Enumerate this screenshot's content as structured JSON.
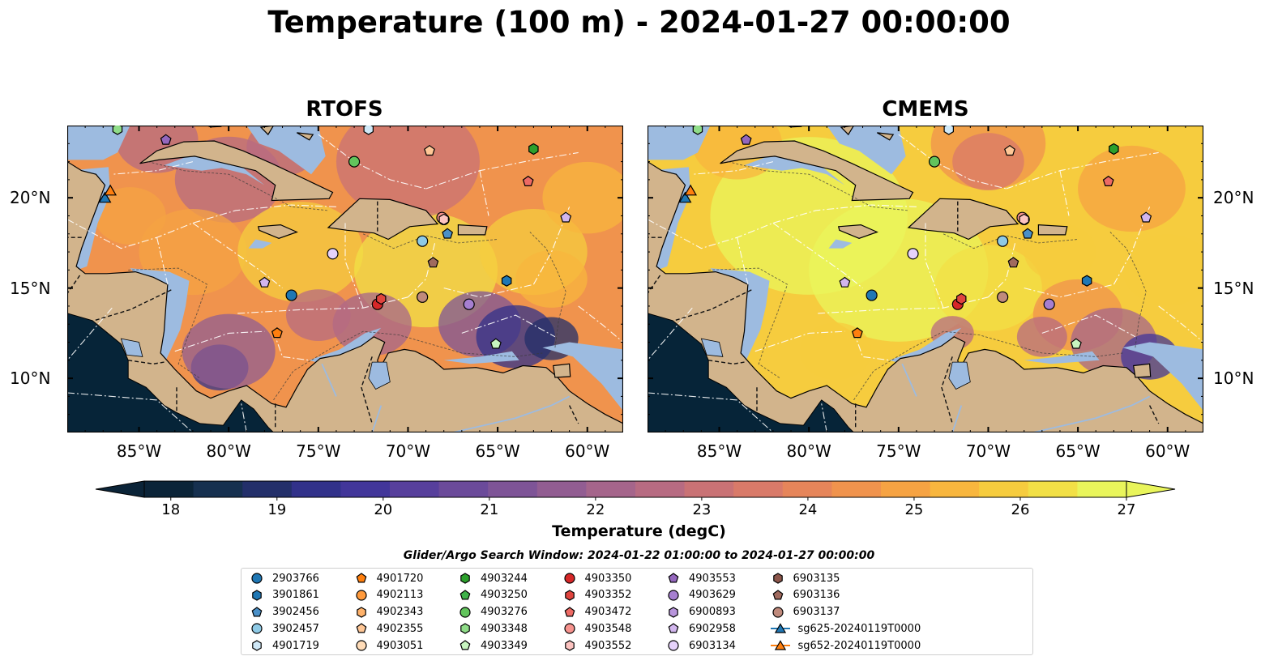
{
  "title": "Temperature (100 m) - 2024-01-27 00:00:00",
  "panels": [
    {
      "title": "RTOFS",
      "variant": "rtofs"
    },
    {
      "title": "CMEMS",
      "variant": "cmems"
    }
  ],
  "map": {
    "lon_range": [
      -89,
      -58
    ],
    "lat_range": [
      7,
      24
    ],
    "lon_ticks": [
      {
        "value": -85,
        "label": "85°W"
      },
      {
        "value": -80,
        "label": "80°W"
      },
      {
        "value": -75,
        "label": "75°W"
      },
      {
        "value": -70,
        "label": "70°W"
      },
      {
        "value": -65,
        "label": "65°W"
      },
      {
        "value": -60,
        "label": "60°W"
      }
    ],
    "lat_ticks": [
      {
        "value": 20,
        "label": "20°N"
      },
      {
        "value": 15,
        "label": "15°N"
      },
      {
        "value": 10,
        "label": "10°N"
      }
    ],
    "colors": {
      "land": "#d2b48c",
      "shelf": "#9dbbe0",
      "deep": "#062438"
    }
  },
  "colorbar": {
    "label": "Temperature (degC)",
    "min": 17.75,
    "max": 27.0,
    "ticks": [
      18,
      19,
      20,
      21,
      22,
      23,
      24,
      25,
      26,
      27
    ],
    "colors": [
      "#0b2438",
      "#16304f",
      "#232f6a",
      "#31318a",
      "#42369a",
      "#573f9c",
      "#6b4a9a",
      "#7e5497",
      "#925d92",
      "#a5658b",
      "#b76b82",
      "#c97275",
      "#d97a69",
      "#e6855a",
      "#f0934d",
      "#f6a343",
      "#f8b63e",
      "#f6cc3e",
      "#f2e046",
      "#e9f55b"
    ]
  },
  "search_window": "Glider/Argo Search Window: 2024-01-22 01:00:00 to 2024-01-27 00:00:00",
  "legend": [
    {
      "label": "2903766",
      "marker": "circle",
      "color": "#1f77b4"
    },
    {
      "label": "3901861",
      "marker": "hexagon",
      "color": "#1f77b4"
    },
    {
      "label": "3902456",
      "marker": "pentagon",
      "color": "#4a90c8"
    },
    {
      "label": "3902457",
      "marker": "circle",
      "color": "#8ecae6"
    },
    {
      "label": "4901719",
      "marker": "hexagon",
      "color": "#cfe8f7"
    },
    {
      "label": "4901720",
      "marker": "pentagon",
      "color": "#ff7f0e"
    },
    {
      "label": "4902113",
      "marker": "circle",
      "color": "#ff9a3c"
    },
    {
      "label": "4902343",
      "marker": "hexagon",
      "color": "#ffb26b"
    },
    {
      "label": "4902355",
      "marker": "pentagon",
      "color": "#ffc796"
    },
    {
      "label": "4903051",
      "marker": "circle",
      "color": "#ffdcb8"
    },
    {
      "label": "4903244",
      "marker": "hexagon",
      "color": "#2ca02c"
    },
    {
      "label": "4903250",
      "marker": "pentagon",
      "color": "#3fb24a"
    },
    {
      "label": "4903276",
      "marker": "circle",
      "color": "#62c45c"
    },
    {
      "label": "4903348",
      "marker": "hexagon",
      "color": "#8fdc88"
    },
    {
      "label": "4903349",
      "marker": "pentagon",
      "color": "#c8f5c0"
    },
    {
      "label": "4903350",
      "marker": "circle",
      "color": "#d62728"
    },
    {
      "label": "4903352",
      "marker": "hexagon",
      "color": "#e0443e"
    },
    {
      "label": "4903472",
      "marker": "pentagon",
      "color": "#ee6a64"
    },
    {
      "label": "4903548",
      "marker": "circle",
      "color": "#f7938e"
    },
    {
      "label": "4903552",
      "marker": "hexagon",
      "color": "#fcc3c0"
    },
    {
      "label": "4903553",
      "marker": "pentagon",
      "color": "#9467bd"
    },
    {
      "label": "4903629",
      "marker": "circle",
      "color": "#a67fd0"
    },
    {
      "label": "6900893",
      "marker": "hexagon",
      "color": "#b895dc"
    },
    {
      "label": "6902958",
      "marker": "pentagon",
      "color": "#d2b6ee"
    },
    {
      "label": "6903134",
      "marker": "circle",
      "color": "#e6d2fb"
    },
    {
      "label": "6903135",
      "marker": "hexagon",
      "color": "#8c564b"
    },
    {
      "label": "6903136",
      "marker": "pentagon",
      "color": "#a06a5e"
    },
    {
      "label": "6903137",
      "marker": "circle",
      "color": "#c08a7c"
    },
    {
      "label": "sg625-20240119T0000",
      "marker": "triangle-line",
      "color": "#1f77b4"
    },
    {
      "label": "sg652-20240119T0000",
      "marker": "triangle-line",
      "color": "#ff7f0e"
    }
  ],
  "floats": [
    {
      "id": "2903766",
      "lon": -76.5,
      "lat": 14.6
    },
    {
      "id": "3901861",
      "lon": -64.5,
      "lat": 15.4
    },
    {
      "id": "3902456",
      "lon": -67.8,
      "lat": 18.0
    },
    {
      "id": "3902457",
      "lon": -69.2,
      "lat": 17.6
    },
    {
      "id": "4901719",
      "lon": -72.2,
      "lat": 23.8
    },
    {
      "id": "4901720",
      "lon": -77.3,
      "lat": 12.5
    },
    {
      "id": "4902355",
      "lon": -68.8,
      "lat": 22.6
    },
    {
      "id": "4903051",
      "lon": -68.0,
      "lat": 18.8
    },
    {
      "id": "4903244",
      "lon": -63.0,
      "lat": 22.7
    },
    {
      "id": "4903276",
      "lon": -73.0,
      "lat": 22.0
    },
    {
      "id": "4903348",
      "lon": -86.2,
      "lat": 23.8
    },
    {
      "id": "4903349",
      "lon": -65.1,
      "lat": 11.9
    },
    {
      "id": "4903350",
      "lon": -71.7,
      "lat": 14.1
    },
    {
      "id": "4903352",
      "lon": -71.5,
      "lat": 14.4
    },
    {
      "id": "4903472",
      "lon": -63.3,
      "lat": 20.9
    },
    {
      "id": "4903548",
      "lon": -68.1,
      "lat": 18.9
    },
    {
      "id": "4903552",
      "lon": -68.0,
      "lat": 18.8
    },
    {
      "id": "4903553",
      "lon": -83.5,
      "lat": 23.2
    },
    {
      "id": "4903629",
      "lon": -66.6,
      "lat": 14.1
    },
    {
      "id": "6902958",
      "lon": -61.2,
      "lat": 18.9
    },
    {
      "id": "6903134",
      "lon": -74.2,
      "lat": 16.9
    },
    {
      "id": "6903136",
      "lon": -68.6,
      "lat": 16.4
    },
    {
      "id": "6903137",
      "lon": -69.2,
      "lat": 14.5
    },
    {
      "id": "6902958b",
      "lon": -78.0,
      "lat": 15.3
    }
  ],
  "gliders": [
    {
      "id": "sg625-20240119T0000",
      "lon": -86.9,
      "lat": 20.0
    },
    {
      "id": "sg652-20240119T0000",
      "lon": -86.6,
      "lat": 20.4
    }
  ]
}
